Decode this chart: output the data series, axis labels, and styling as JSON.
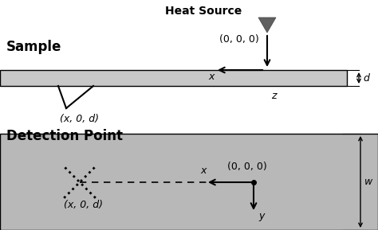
{
  "bg_color": "#ffffff",
  "sample_color": "#c8c8c8",
  "bottom_color": "#b8b8b8",
  "title_heat_source": "Heat Source",
  "label_sample": "Sample",
  "label_detection": "Detection Point",
  "label_origin_top": "(0, 0, 0)",
  "label_x_coord_top": "(x, 0, d)",
  "label_origin_bottom": "(0, 0, 0)",
  "label_x_coord_bottom": "(x, 0, d)",
  "label_d": "d",
  "label_w": "w",
  "label_x": "x",
  "label_z": "z",
  "label_x_bottom": "x",
  "label_y_bottom": "y",
  "fig_w": 4.74,
  "fig_h": 2.89,
  "dpi": 100
}
